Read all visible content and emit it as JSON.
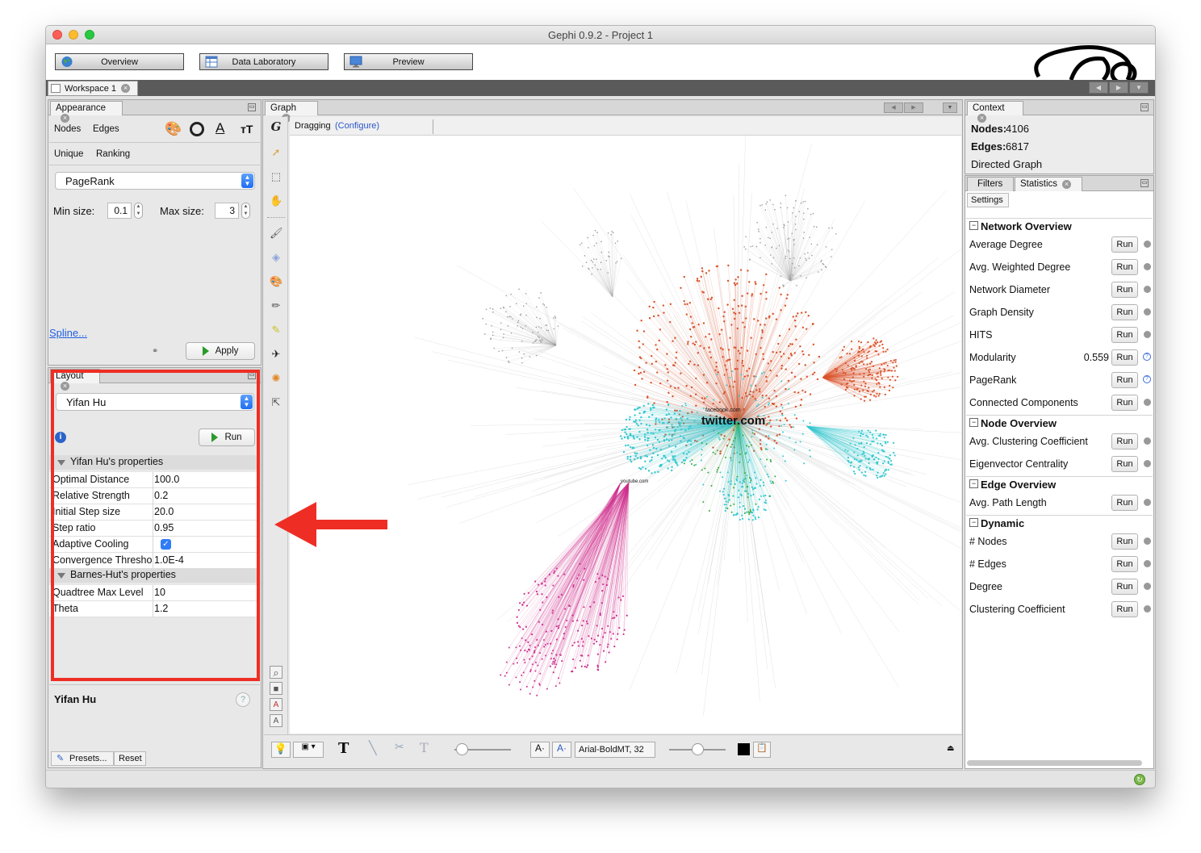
{
  "window": {
    "title": "Gephi 0.9.2 - Project 1"
  },
  "modes": {
    "overview": "Overview",
    "data_laboratory": "Data Laboratory",
    "preview": "Preview"
  },
  "workspace": {
    "tab": "Workspace 1"
  },
  "appearance": {
    "tab": "Appearance",
    "nodes": "Nodes",
    "edges": "Edges",
    "unique": "Unique",
    "ranking": "Ranking",
    "attribute": "PageRank",
    "min_size_label": "Min size:",
    "min_size": "0.1",
    "max_size_label": "Max size:",
    "max_size": "3",
    "spline": "Spline...",
    "apply": "Apply",
    "text_icon_a": "A",
    "text_icon_tt": "тT"
  },
  "layout": {
    "tab": "Layout",
    "algorithm": "Yifan Hu",
    "run": "Run",
    "section_yifan": "Yifan Hu's properties",
    "props_yifan": [
      {
        "key": "Optimal Distance",
        "value": "100.0"
      },
      {
        "key": "Relative Strength",
        "value": "0.2"
      },
      {
        "key": "Initial Step size",
        "value": "20.0"
      },
      {
        "key": "Step ratio",
        "value": "0.95"
      },
      {
        "key": "Adaptive Cooling",
        "value": ""
      },
      {
        "key": "Convergence Threshold",
        "value": "1.0E-4"
      }
    ],
    "adaptive_cooling_checked": true,
    "section_barnes": "Barnes-Hut's properties",
    "props_barnes": [
      {
        "key": "Quadtree Max Level",
        "value": "10"
      },
      {
        "key": "Theta",
        "value": "1.2"
      }
    ],
    "description_title": "Yifan Hu",
    "presets": "Presets...",
    "reset": "Reset"
  },
  "graph": {
    "tab": "Graph",
    "mode": "Dragging",
    "configure": "(Configure)",
    "labels": {
      "big": "twitter.com",
      "small1": "facebook.com",
      "small2": "youtube.com"
    },
    "font": "Arial-BoldMT, 32",
    "colors": {
      "orange": "#d9532a",
      "cyan": "#35c8cf",
      "magenta": "#d0308f",
      "green": "#3aa83a",
      "gray": "#9a9a9a"
    }
  },
  "context": {
    "tab": "Context",
    "nodes_label": "Nodes:",
    "nodes": "4106",
    "edges_label": "Edges:",
    "edges": "6817",
    "type": "Directed Graph"
  },
  "stats": {
    "filters_tab": "Filters",
    "statistics_tab": "Statistics",
    "settings": "Settings",
    "run": "Run",
    "sections": [
      {
        "title": "Network Overview",
        "items": [
          {
            "name": "Average Degree",
            "value": "",
            "help": false
          },
          {
            "name": "Avg. Weighted Degree",
            "value": "",
            "help": false
          },
          {
            "name": "Network Diameter",
            "value": "",
            "help": false
          },
          {
            "name": "Graph Density",
            "value": "",
            "help": false
          },
          {
            "name": "HITS",
            "value": "",
            "help": false
          },
          {
            "name": "Modularity",
            "value": "0.559",
            "help": true
          },
          {
            "name": "PageRank",
            "value": "",
            "help": true
          },
          {
            "name": "Connected Components",
            "value": "",
            "help": false
          }
        ]
      },
      {
        "title": "Node Overview",
        "items": [
          {
            "name": "Avg. Clustering Coefficient",
            "value": "",
            "help": false
          },
          {
            "name": "Eigenvector Centrality",
            "value": "",
            "help": false
          }
        ]
      },
      {
        "title": "Edge Overview",
        "items": [
          {
            "name": "Avg. Path Length",
            "value": "",
            "help": false
          }
        ]
      },
      {
        "title": "Dynamic",
        "items": [
          {
            "name": "# Nodes",
            "value": "",
            "help": false
          },
          {
            "name": "# Edges",
            "value": "",
            "help": false
          },
          {
            "name": "Degree",
            "value": "",
            "help": false
          },
          {
            "name": "Clustering Coefficient",
            "value": "",
            "help": false
          }
        ]
      }
    ]
  }
}
